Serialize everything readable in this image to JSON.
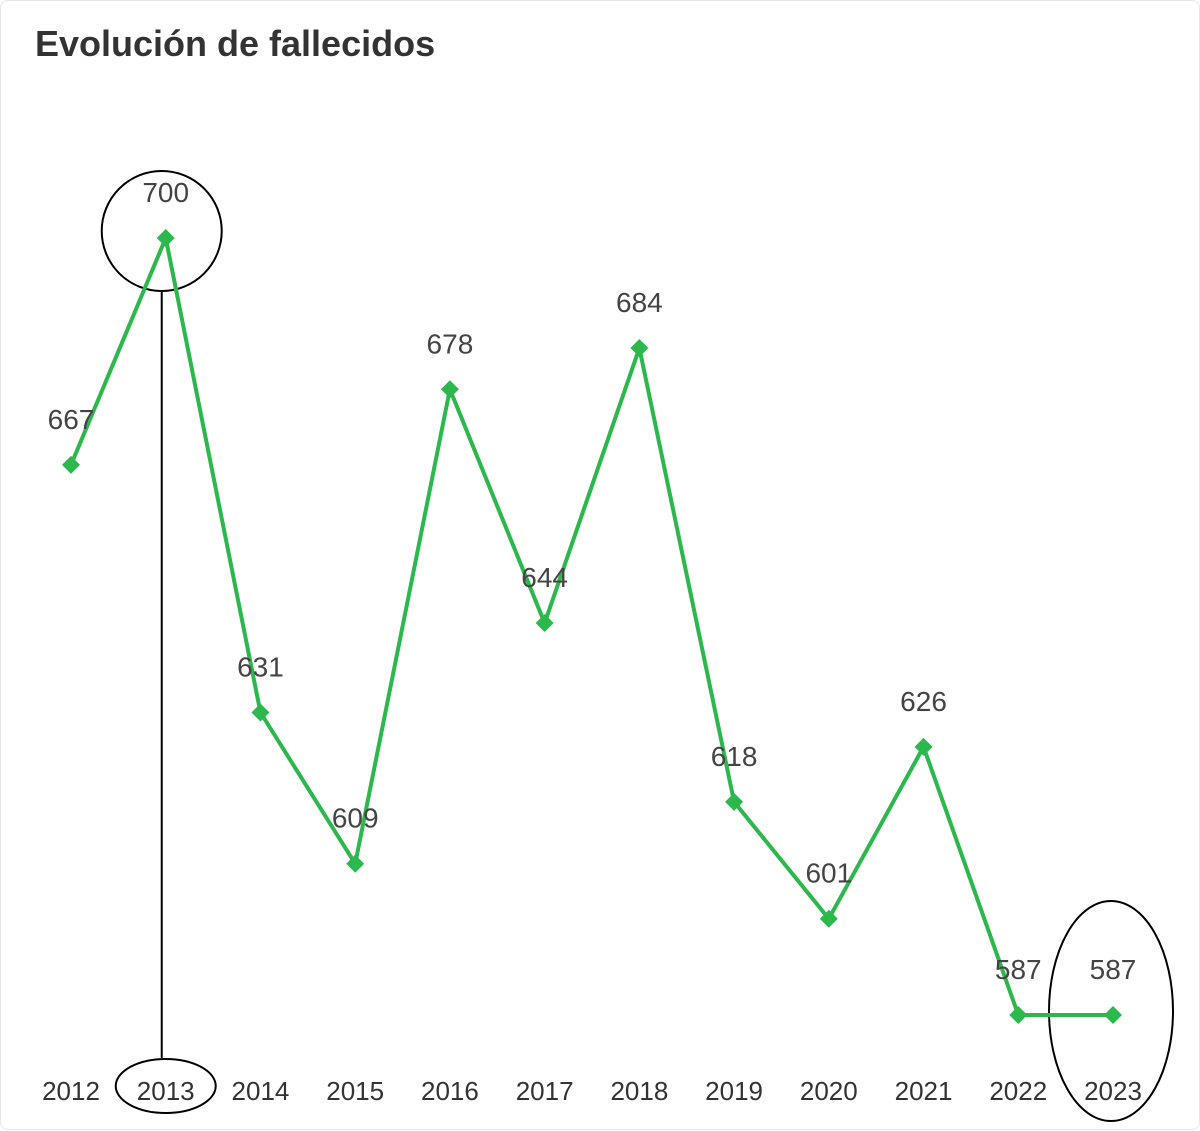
{
  "chart_data": {
    "type": "line",
    "title": "Evolución de fallecidos",
    "categories": [
      "2012",
      "2013",
      "2014",
      "2015",
      "2016",
      "2017",
      "2018",
      "2019",
      "2020",
      "2021",
      "2022",
      "2023"
    ],
    "values": [
      667,
      700,
      631,
      609,
      678,
      644,
      684,
      618,
      601,
      626,
      587,
      587
    ],
    "line_color": "#2db84d",
    "marker": "diamond",
    "data_labels": true,
    "grid": false,
    "annotations": {
      "highlighted_categories": [
        "2013",
        "2023"
      ],
      "annotation_color": "#000000"
    }
  }
}
